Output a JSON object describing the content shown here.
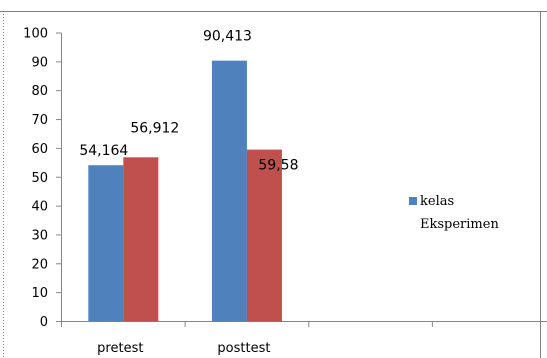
{
  "chart_data": {
    "type": "bar",
    "categories": [
      "pretest",
      "posttest",
      "",
      ""
    ],
    "series": [
      {
        "name": "kelas Eksperimen",
        "values": [
          54.164,
          90.413,
          null,
          null
        ],
        "color": "#4F81BD",
        "labels": [
          "54,164",
          "90,413",
          "",
          ""
        ]
      },
      {
        "name": "",
        "values": [
          56.912,
          59.58,
          null,
          null
        ],
        "color": "#C0504D",
        "labels": [
          "56,912",
          "59,58",
          "",
          ""
        ]
      }
    ],
    "ylim": [
      0,
      100
    ],
    "yticks": [
      "0",
      "10",
      "20",
      "30",
      "40",
      "50",
      "60",
      "70",
      "80",
      "90",
      "100"
    ],
    "grid": false,
    "legend": {
      "placement": "right",
      "entries": [
        "kelas",
        "Eksperimen"
      ]
    },
    "title": "",
    "xlabel": "",
    "ylabel": ""
  }
}
